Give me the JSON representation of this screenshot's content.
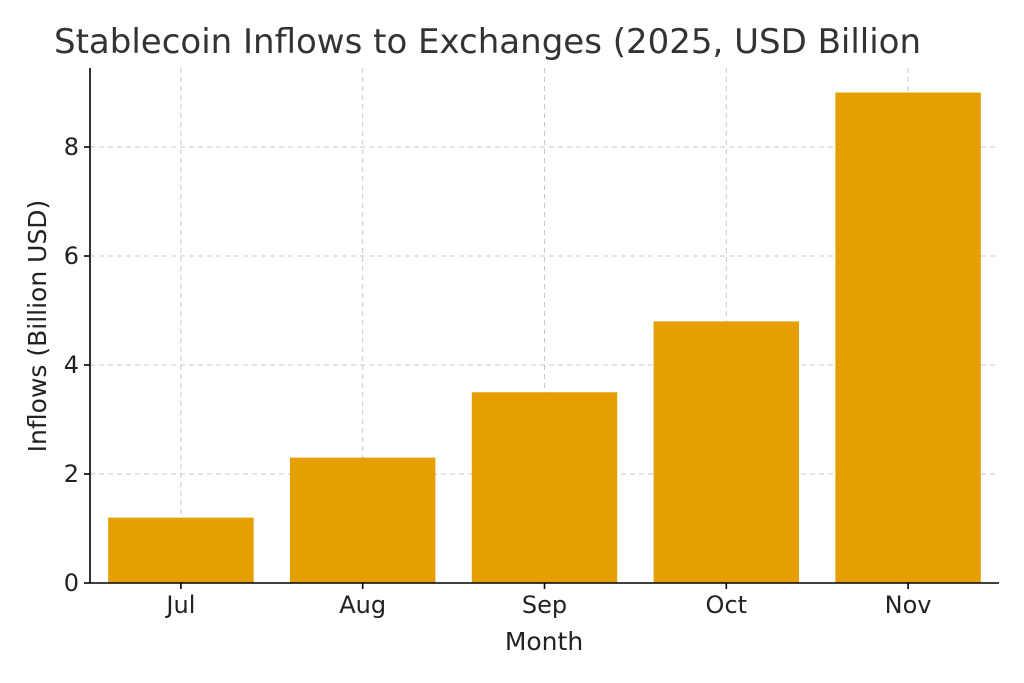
{
  "chart_data": {
    "type": "bar",
    "title": "Stablecoin Inflows to Exchanges (2025, USD Billion",
    "xlabel": "Month",
    "ylabel": "Inflows (Billion USD)",
    "categories": [
      "Jul",
      "Aug",
      "Sep",
      "Oct",
      "Nov"
    ],
    "values": [
      1.2,
      2.3,
      3.5,
      4.8,
      9.0
    ],
    "ylim": [
      0,
      9.45
    ],
    "yticks": [
      0,
      2,
      4,
      6,
      8
    ],
    "grid": true,
    "colors": {
      "bar": "#E69F00",
      "grid": "#c8c8c8",
      "axis": "#000000",
      "text": "#333333"
    }
  }
}
